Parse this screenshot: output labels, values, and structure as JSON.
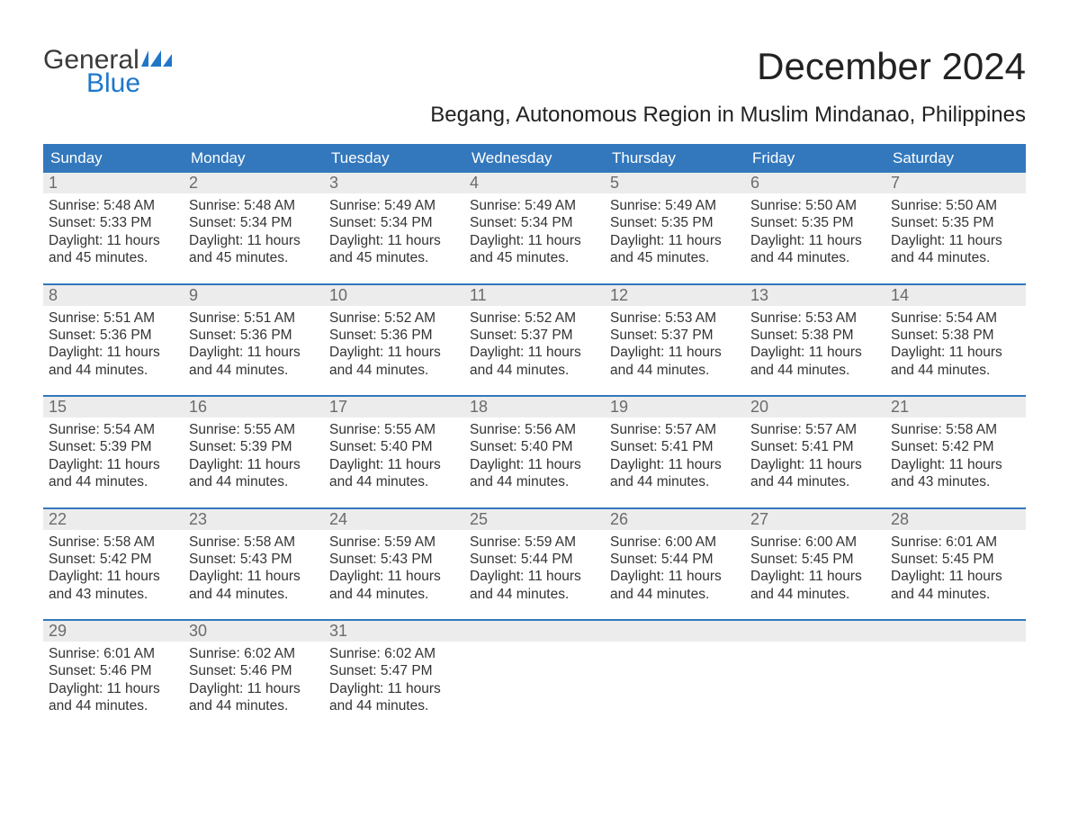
{
  "logo": {
    "text1": "General",
    "text2": "Blue"
  },
  "title": "December 2024",
  "subtitle": "Begang, Autonomous Region in Muslim Mindanao, Philippines",
  "colors": {
    "header_bg": "#3378bd",
    "header_text": "#ffffff",
    "daynum_bg": "#ececec",
    "daynum_text": "#6b6b6b",
    "body_text": "#333333",
    "logo_blue": "#1f77c9",
    "page_bg": "#ffffff"
  },
  "dow": [
    "Sunday",
    "Monday",
    "Tuesday",
    "Wednesday",
    "Thursday",
    "Friday",
    "Saturday"
  ],
  "weeks": [
    {
      "days": [
        {
          "n": "1",
          "sunrise": "Sunrise: 5:48 AM",
          "sunset": "Sunset: 5:33 PM",
          "d1": "Daylight: 11 hours",
          "d2": "and 45 minutes."
        },
        {
          "n": "2",
          "sunrise": "Sunrise: 5:48 AM",
          "sunset": "Sunset: 5:34 PM",
          "d1": "Daylight: 11 hours",
          "d2": "and 45 minutes."
        },
        {
          "n": "3",
          "sunrise": "Sunrise: 5:49 AM",
          "sunset": "Sunset: 5:34 PM",
          "d1": "Daylight: 11 hours",
          "d2": "and 45 minutes."
        },
        {
          "n": "4",
          "sunrise": "Sunrise: 5:49 AM",
          "sunset": "Sunset: 5:34 PM",
          "d1": "Daylight: 11 hours",
          "d2": "and 45 minutes."
        },
        {
          "n": "5",
          "sunrise": "Sunrise: 5:49 AM",
          "sunset": "Sunset: 5:35 PM",
          "d1": "Daylight: 11 hours",
          "d2": "and 45 minutes."
        },
        {
          "n": "6",
          "sunrise": "Sunrise: 5:50 AM",
          "sunset": "Sunset: 5:35 PM",
          "d1": "Daylight: 11 hours",
          "d2": "and 44 minutes."
        },
        {
          "n": "7",
          "sunrise": "Sunrise: 5:50 AM",
          "sunset": "Sunset: 5:35 PM",
          "d1": "Daylight: 11 hours",
          "d2": "and 44 minutes."
        }
      ]
    },
    {
      "days": [
        {
          "n": "8",
          "sunrise": "Sunrise: 5:51 AM",
          "sunset": "Sunset: 5:36 PM",
          "d1": "Daylight: 11 hours",
          "d2": "and 44 minutes."
        },
        {
          "n": "9",
          "sunrise": "Sunrise: 5:51 AM",
          "sunset": "Sunset: 5:36 PM",
          "d1": "Daylight: 11 hours",
          "d2": "and 44 minutes."
        },
        {
          "n": "10",
          "sunrise": "Sunrise: 5:52 AM",
          "sunset": "Sunset: 5:36 PM",
          "d1": "Daylight: 11 hours",
          "d2": "and 44 minutes."
        },
        {
          "n": "11",
          "sunrise": "Sunrise: 5:52 AM",
          "sunset": "Sunset: 5:37 PM",
          "d1": "Daylight: 11 hours",
          "d2": "and 44 minutes."
        },
        {
          "n": "12",
          "sunrise": "Sunrise: 5:53 AM",
          "sunset": "Sunset: 5:37 PM",
          "d1": "Daylight: 11 hours",
          "d2": "and 44 minutes."
        },
        {
          "n": "13",
          "sunrise": "Sunrise: 5:53 AM",
          "sunset": "Sunset: 5:38 PM",
          "d1": "Daylight: 11 hours",
          "d2": "and 44 minutes."
        },
        {
          "n": "14",
          "sunrise": "Sunrise: 5:54 AM",
          "sunset": "Sunset: 5:38 PM",
          "d1": "Daylight: 11 hours",
          "d2": "and 44 minutes."
        }
      ]
    },
    {
      "days": [
        {
          "n": "15",
          "sunrise": "Sunrise: 5:54 AM",
          "sunset": "Sunset: 5:39 PM",
          "d1": "Daylight: 11 hours",
          "d2": "and 44 minutes."
        },
        {
          "n": "16",
          "sunrise": "Sunrise: 5:55 AM",
          "sunset": "Sunset: 5:39 PM",
          "d1": "Daylight: 11 hours",
          "d2": "and 44 minutes."
        },
        {
          "n": "17",
          "sunrise": "Sunrise: 5:55 AM",
          "sunset": "Sunset: 5:40 PM",
          "d1": "Daylight: 11 hours",
          "d2": "and 44 minutes."
        },
        {
          "n": "18",
          "sunrise": "Sunrise: 5:56 AM",
          "sunset": "Sunset: 5:40 PM",
          "d1": "Daylight: 11 hours",
          "d2": "and 44 minutes."
        },
        {
          "n": "19",
          "sunrise": "Sunrise: 5:57 AM",
          "sunset": "Sunset: 5:41 PM",
          "d1": "Daylight: 11 hours",
          "d2": "and 44 minutes."
        },
        {
          "n": "20",
          "sunrise": "Sunrise: 5:57 AM",
          "sunset": "Sunset: 5:41 PM",
          "d1": "Daylight: 11 hours",
          "d2": "and 44 minutes."
        },
        {
          "n": "21",
          "sunrise": "Sunrise: 5:58 AM",
          "sunset": "Sunset: 5:42 PM",
          "d1": "Daylight: 11 hours",
          "d2": "and 43 minutes."
        }
      ]
    },
    {
      "days": [
        {
          "n": "22",
          "sunrise": "Sunrise: 5:58 AM",
          "sunset": "Sunset: 5:42 PM",
          "d1": "Daylight: 11 hours",
          "d2": "and 43 minutes."
        },
        {
          "n": "23",
          "sunrise": "Sunrise: 5:58 AM",
          "sunset": "Sunset: 5:43 PM",
          "d1": "Daylight: 11 hours",
          "d2": "and 44 minutes."
        },
        {
          "n": "24",
          "sunrise": "Sunrise: 5:59 AM",
          "sunset": "Sunset: 5:43 PM",
          "d1": "Daylight: 11 hours",
          "d2": "and 44 minutes."
        },
        {
          "n": "25",
          "sunrise": "Sunrise: 5:59 AM",
          "sunset": "Sunset: 5:44 PM",
          "d1": "Daylight: 11 hours",
          "d2": "and 44 minutes."
        },
        {
          "n": "26",
          "sunrise": "Sunrise: 6:00 AM",
          "sunset": "Sunset: 5:44 PM",
          "d1": "Daylight: 11 hours",
          "d2": "and 44 minutes."
        },
        {
          "n": "27",
          "sunrise": "Sunrise: 6:00 AM",
          "sunset": "Sunset: 5:45 PM",
          "d1": "Daylight: 11 hours",
          "d2": "and 44 minutes."
        },
        {
          "n": "28",
          "sunrise": "Sunrise: 6:01 AM",
          "sunset": "Sunset: 5:45 PM",
          "d1": "Daylight: 11 hours",
          "d2": "and 44 minutes."
        }
      ]
    },
    {
      "days": [
        {
          "n": "29",
          "sunrise": "Sunrise: 6:01 AM",
          "sunset": "Sunset: 5:46 PM",
          "d1": "Daylight: 11 hours",
          "d2": "and 44 minutes."
        },
        {
          "n": "30",
          "sunrise": "Sunrise: 6:02 AM",
          "sunset": "Sunset: 5:46 PM",
          "d1": "Daylight: 11 hours",
          "d2": "and 44 minutes."
        },
        {
          "n": "31",
          "sunrise": "Sunrise: 6:02 AM",
          "sunset": "Sunset: 5:47 PM",
          "d1": "Daylight: 11 hours",
          "d2": "and 44 minutes."
        },
        {
          "n": "",
          "sunrise": "",
          "sunset": "",
          "d1": "",
          "d2": ""
        },
        {
          "n": "",
          "sunrise": "",
          "sunset": "",
          "d1": "",
          "d2": ""
        },
        {
          "n": "",
          "sunrise": "",
          "sunset": "",
          "d1": "",
          "d2": ""
        },
        {
          "n": "",
          "sunrise": "",
          "sunset": "",
          "d1": "",
          "d2": ""
        }
      ]
    }
  ]
}
